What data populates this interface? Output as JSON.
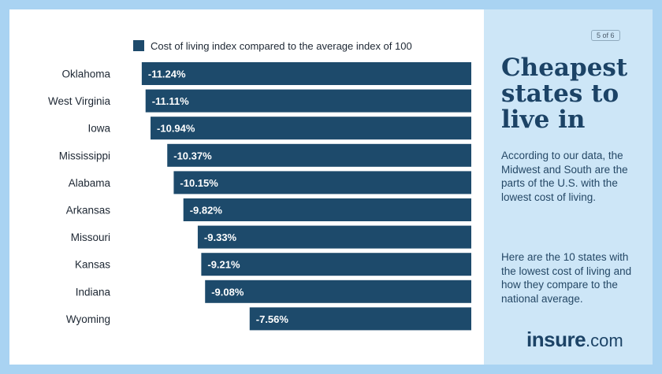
{
  "chart_data": {
    "type": "bar",
    "orientation": "horizontal",
    "legend": "Cost of living index compared to the average index of 100",
    "categories": [
      "Oklahoma",
      "West Virginia",
      "Iowa",
      "Mississippi",
      "Alabama",
      "Arkansas",
      "Missouri",
      "Kansas",
      "Indiana",
      "Wyoming"
    ],
    "values": [
      -11.24,
      -11.11,
      -10.94,
      -10.37,
      -10.15,
      -9.82,
      -9.33,
      -9.21,
      -9.08,
      -7.56
    ],
    "value_labels": [
      "-11.24%",
      "-11.11%",
      "-10.94%",
      "-10.37%",
      "-10.15%",
      "-9.82%",
      "-9.33%",
      "-9.21%",
      "-9.08%",
      "-7.56%"
    ],
    "grid": false,
    "legend_position": "top",
    "bar_color": "#1d4a6b"
  },
  "side_panel": {
    "page_indicator": "5 of 6",
    "title": "Cheapest states to live in",
    "paragraph1": "According to our data, the Midwest and South are the parts of the U.S. with the lowest cost of living.",
    "paragraph2": "Here are the 10 states with the lowest cost of living and how they compare to the national average.",
    "logo_text": "insure",
    "logo_suffix": ".com"
  },
  "colors": {
    "frame": "#a9d3f2",
    "panel": "#cde6f7",
    "title": "#1c4366"
  }
}
